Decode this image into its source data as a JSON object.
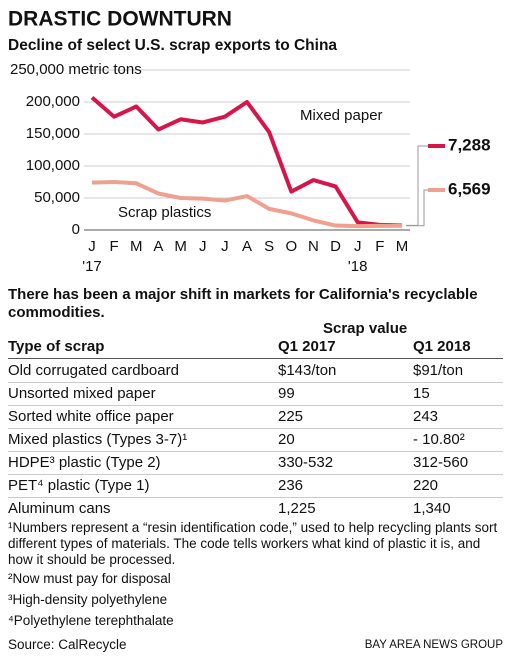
{
  "chart_data": {
    "type": "line",
    "title": "DRASTIC DOWNTURN",
    "subtitle": "Decline of select U.S. scrap exports to China",
    "categories": [
      "J",
      "F",
      "M",
      "A",
      "M",
      "J",
      "J",
      "A",
      "S",
      "O",
      "N",
      "D",
      "J",
      "F",
      "M"
    ],
    "category_years": [
      "'17",
      null,
      null,
      null,
      null,
      null,
      null,
      null,
      null,
      null,
      null,
      null,
      "'18",
      null,
      null
    ],
    "series": [
      {
        "name": "Mixed paper",
        "color": "#d6164a",
        "values": [
          207000,
          177000,
          193000,
          157000,
          173000,
          168000,
          177000,
          200000,
          153000,
          60000,
          78000,
          68000,
          12000,
          8000,
          7288
        ],
        "value_labels": [
          null,
          null,
          null,
          null,
          null,
          null,
          null,
          null,
          null,
          null,
          null,
          null,
          null,
          null,
          "7,288"
        ]
      },
      {
        "name": "Scrap plastics",
        "color": "#f0a08e",
        "values": [
          74000,
          75000,
          73000,
          57000,
          50000,
          49000,
          46000,
          53000,
          33000,
          26000,
          15000,
          7000,
          6000,
          6500,
          6569
        ],
        "value_labels": [
          null,
          null,
          null,
          null,
          null,
          null,
          null,
          null,
          null,
          null,
          null,
          null,
          null,
          null,
          "6,569"
        ]
      }
    ],
    "ylim": [
      0,
      250000
    ],
    "yticks": [
      0,
      {
        "value": 50000,
        "label": "50,000"
      },
      {
        "value": 100000,
        "label": "100,000"
      },
      {
        "value": 150000,
        "label": "150,000"
      },
      {
        "value": 200000,
        "label": "200,000"
      },
      {
        "value": 250000,
        "label": "250,000 metric tons"
      }
    ],
    "grid": true
  },
  "table": {
    "title": "There has been a major shift in markets for California's recyclable commodities.",
    "group_header": "Scrap value",
    "columns": [
      "Type of scrap",
      "Q1 2017",
      "Q1 2018"
    ],
    "rows": [
      [
        "Old corrugated cardboard",
        "$143/ton",
        "$91/ton"
      ],
      [
        "Unsorted mixed paper",
        "99",
        "15"
      ],
      [
        "Sorted white office paper",
        "225",
        "243"
      ],
      [
        "Mixed plastics (Types 3-7)¹",
        "20",
        "- 10.80²"
      ],
      [
        "HDPE³ plastic (Type 2)",
        "330-532",
        "312-560"
      ],
      [
        "PET⁴ plastic (Type 1)",
        "236",
        "220"
      ],
      [
        "Aluminum cans",
        "1,225",
        "1,340"
      ]
    ]
  },
  "footnotes": [
    "¹Numbers represent a “resin identification code,” used to help recycling plants sort different types of materials. The code tells workers what kind of plastic it is, and how it should be processed.",
    "²Now must pay for disposal",
    "³High-density polyethylene",
    "⁴Polyethylene terephthalate"
  ],
  "source": "Source: CalRecycle",
  "credit": "BAY AREA NEWS GROUP"
}
